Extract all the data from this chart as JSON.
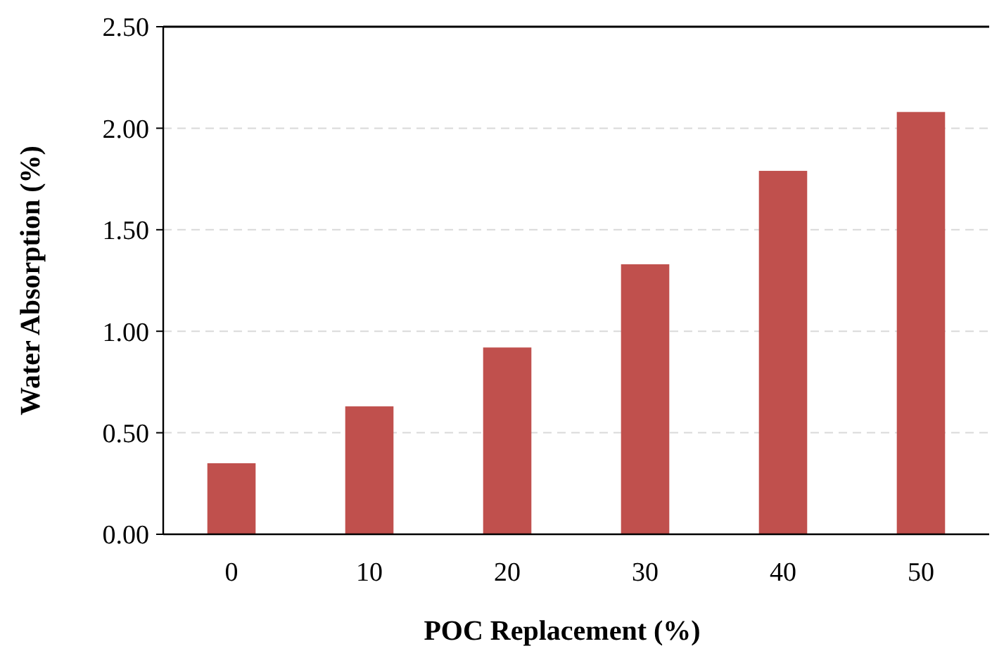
{
  "chart_data": {
    "type": "bar",
    "xlabel": "POC Replacement (%)",
    "ylabel": "Water Absorption (%)",
    "categories": [
      "0",
      "10",
      "20",
      "30",
      "40",
      "50"
    ],
    "values": [
      0.35,
      0.63,
      0.92,
      1.33,
      1.79,
      2.08
    ],
    "color": "#c0504d",
    "ylim": [
      0,
      2.5
    ],
    "yticks": [
      {
        "value": 0,
        "label": "0.00"
      },
      {
        "value": 0.5,
        "label": "0.50"
      },
      {
        "value": 1,
        "label": "1.00"
      },
      {
        "value": 1.5,
        "label": "1.50"
      },
      {
        "value": 2,
        "label": "2.00"
      },
      {
        "value": 2.5,
        "label": "2.50"
      }
    ],
    "grid": "y"
  }
}
